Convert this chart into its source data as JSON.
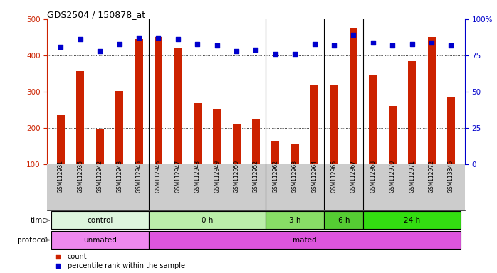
{
  "title": "GDS2504 / 150878_at",
  "samples": [
    "GSM112931",
    "GSM112935",
    "GSM112942",
    "GSM112943",
    "GSM112945",
    "GSM112946",
    "GSM112947",
    "GSM112948",
    "GSM112949",
    "GSM112950",
    "GSM112952",
    "GSM112962",
    "GSM112963",
    "GSM112964",
    "GSM112965",
    "GSM112967",
    "GSM112968",
    "GSM112970",
    "GSM112971",
    "GSM112972",
    "GSM113345"
  ],
  "counts": [
    235,
    357,
    195,
    302,
    445,
    450,
    422,
    268,
    250,
    210,
    225,
    163,
    155,
    318,
    320,
    475,
    345,
    260,
    385,
    450,
    283
  ],
  "percentile_ranks": [
    81,
    86,
    78,
    83,
    87,
    87,
    86,
    83,
    82,
    78,
    79,
    76,
    76,
    83,
    82,
    89,
    84,
    82,
    83,
    84,
    82
  ],
  "bar_color": "#cc2200",
  "dot_color": "#0000cc",
  "ylim_left": [
    100,
    500
  ],
  "ylim_right": [
    0,
    100
  ],
  "yticks_left": [
    100,
    200,
    300,
    400,
    500
  ],
  "yticks_right": [
    0,
    25,
    50,
    75,
    100
  ],
  "yticklabels_right": [
    "0",
    "25",
    "50",
    "75",
    "100%"
  ],
  "grid_values": [
    200,
    300,
    400
  ],
  "time_groups": [
    {
      "label": "control",
      "start": 0,
      "end": 5,
      "color": "#ddf5dd"
    },
    {
      "label": "0 h",
      "start": 5,
      "end": 11,
      "color": "#bbeeaa"
    },
    {
      "label": "3 h",
      "start": 11,
      "end": 14,
      "color": "#88dd66"
    },
    {
      "label": "6 h",
      "start": 14,
      "end": 16,
      "color": "#55cc33"
    },
    {
      "label": "24 h",
      "start": 16,
      "end": 21,
      "color": "#33dd11"
    }
  ],
  "protocol_groups": [
    {
      "label": "unmated",
      "start": 0,
      "end": 5,
      "color": "#ee88ee"
    },
    {
      "label": "mated",
      "start": 5,
      "end": 21,
      "color": "#dd55dd"
    }
  ],
  "time_label": "time",
  "protocol_label": "protocol",
  "legend_count": "count",
  "legend_pct": "percentile rank within the sample",
  "bg_color": "#ffffff",
  "xticklabel_bg": "#cccccc",
  "bar_width": 0.4,
  "dot_size": 25,
  "right_axis_label_color": "#0000cc",
  "left_axis_label_color": "#cc2200",
  "bar_bottom": 100
}
